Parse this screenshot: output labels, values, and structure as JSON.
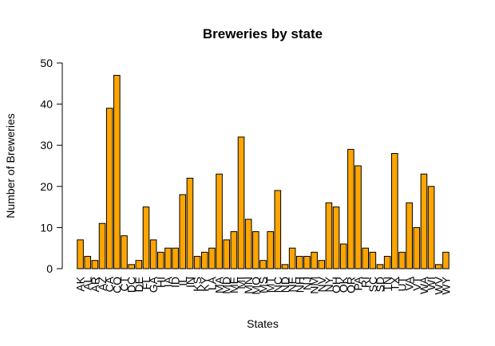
{
  "chart_data": {
    "type": "bar",
    "title": "Breweries by state",
    "xlabel": "States",
    "ylabel": "Number of Breweries",
    "ylim": [
      0,
      50
    ],
    "yticks": [
      0,
      10,
      20,
      30,
      40,
      50
    ],
    "grid": false,
    "bar_color": "#FFA500",
    "bar_stroke": "#000000",
    "categories": [
      "AK",
      "AL",
      "AR",
      "AZ",
      "CA",
      "CO",
      "CT",
      "DC",
      "DE",
      "FL",
      "GA",
      "HI",
      "IA",
      "ID",
      "IL",
      "IN",
      "KS",
      "KY",
      "LA",
      "MA",
      "MD",
      "ME",
      "MI",
      "MN",
      "MO",
      "MS",
      "MT",
      "NC",
      "ND",
      "NE",
      "NH",
      "NJ",
      "NM",
      "NV",
      "NY",
      "OH",
      "OK",
      "OR",
      "PA",
      "RI",
      "SC",
      "SD",
      "TN",
      "TX",
      "UT",
      "VA",
      "VT",
      "WA",
      "WI",
      "WV",
      "WY"
    ],
    "values": [
      7,
      3,
      2,
      11,
      39,
      47,
      8,
      1,
      2,
      15,
      7,
      4,
      5,
      5,
      18,
      22,
      3,
      4,
      5,
      23,
      7,
      9,
      32,
      12,
      9,
      2,
      9,
      19,
      1,
      5,
      3,
      3,
      4,
      2,
      16,
      15,
      6,
      29,
      25,
      5,
      4,
      1,
      3,
      28,
      4,
      16,
      10,
      23,
      20,
      1,
      4
    ]
  }
}
